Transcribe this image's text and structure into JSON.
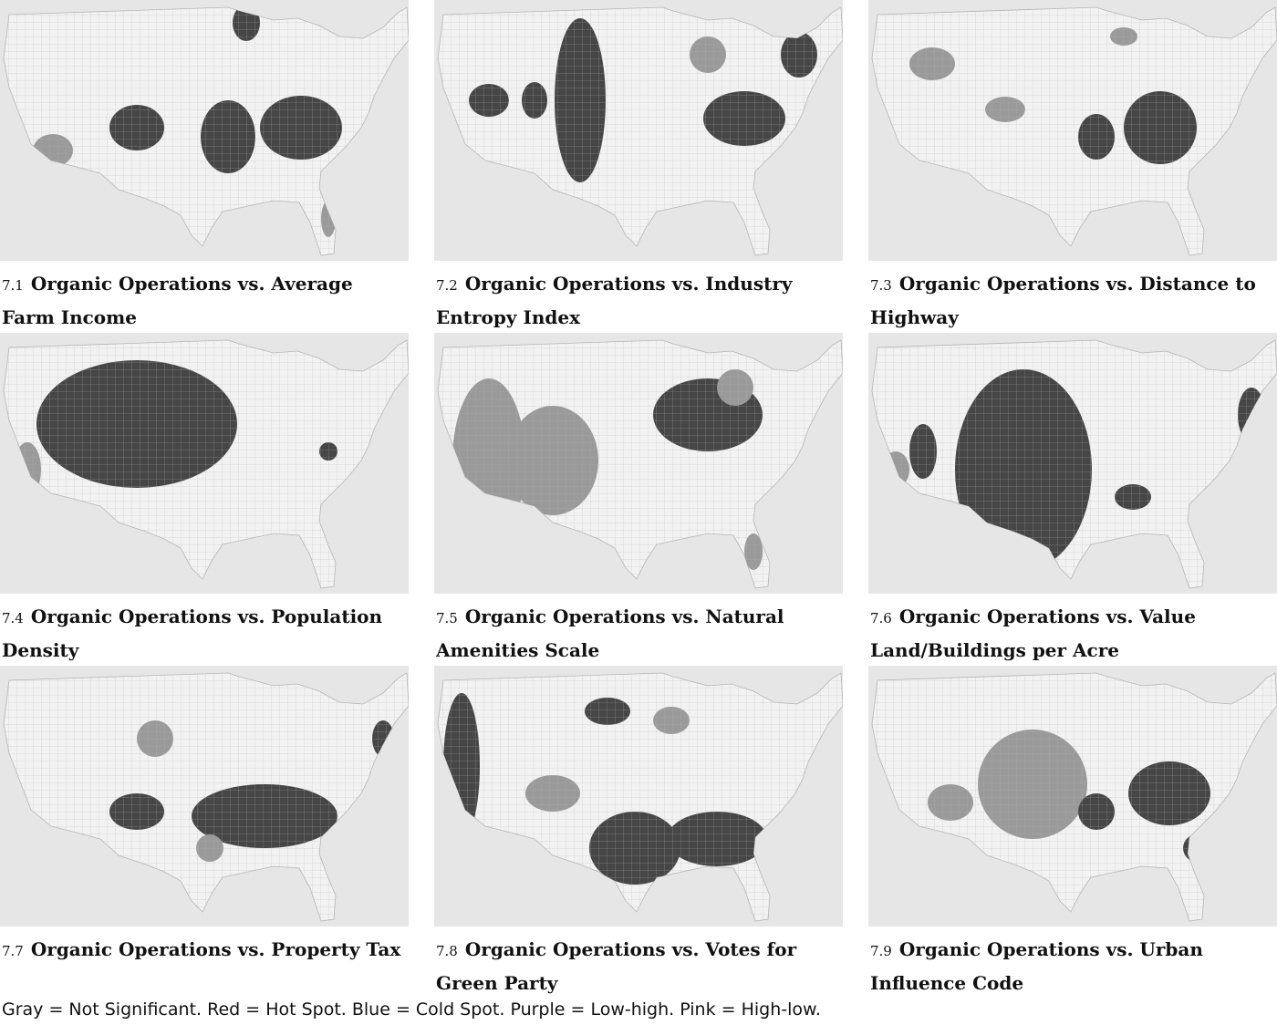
{
  "legend_text": "Gray = Not Significant. Red = Hot Spot. Blue = Cold Spot. Purple = Low-high. Pink = High-low.",
  "colors": {
    "background": "#e6e6e6",
    "not_significant": "#f2f2f2",
    "county_border": "#b5b5b5",
    "hot_spot": "#464646",
    "cold_spot": "#9a9a9a"
  },
  "maps": [
    {
      "id": "7.1",
      "number": "7.1",
      "title": "Organic Operations vs. Average Farm Income"
    },
    {
      "id": "7.2",
      "number": "7.2",
      "title": "Organic Operations vs. Industry Entropy Index"
    },
    {
      "id": "7.3",
      "number": "7.3",
      "title": "Organic Operations vs. Distance to Highway"
    },
    {
      "id": "7.4",
      "number": "7.4",
      "title": "Organic Operations vs. Population Density"
    },
    {
      "id": "7.5",
      "number": "7.5",
      "title": "Organic Operations vs. Natural Amenities Scale"
    },
    {
      "id": "7.6",
      "number": "7.6",
      "title": "Organic Operations vs. Value Land/Buildings per Acre"
    },
    {
      "id": "7.7",
      "number": "7.7",
      "title": "Organic Operations vs. Property Tax"
    },
    {
      "id": "7.8",
      "number": "7.8",
      "title": "Organic Operations vs. Votes for Green Party"
    },
    {
      "id": "7.9",
      "number": "7.9",
      "title": "Organic Operations vs. Urban Influence Code"
    }
  ]
}
